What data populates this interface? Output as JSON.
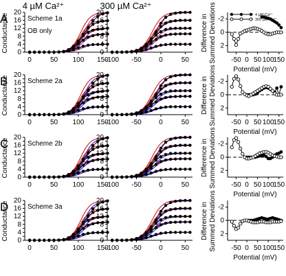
{
  "figure": {
    "column_headers": [
      "4 µM Ca²⁺",
      "300 µM Ca²⁺"
    ],
    "ca_low": "4 µM Ca",
    "ca_high": "300 µM Ca",
    "ca_superscript": "2+",
    "micro_symbol": "μ",
    "left_ylabel": "Conductance",
    "right_ylabel_line1": "Difference in",
    "right_ylabel_line2": "Summed Deviations",
    "xlabel": "Potential (mV)",
    "legend": [
      "4 µM Ca²⁺",
      "300 µM Ca²⁺"
    ],
    "rows": [
      {
        "letter": "A",
        "scheme": "Scheme 1a",
        "note": "OB only"
      },
      {
        "letter": "B",
        "scheme": "Scheme 2a",
        "note": ""
      },
      {
        "letter": "C",
        "scheme": "Scheme 2b",
        "note": ""
      },
      {
        "letter": "D",
        "scheme": "Scheme 3a",
        "note": ""
      }
    ],
    "colors": {
      "data": "#000000",
      "fit_red": "#d01818",
      "fit_blue": "#2020d0",
      "fit_purple": "#8030a0"
    }
  },
  "chart_data": [
    {
      "type": "line",
      "panel": "left (4 µM Ca²⁺), rows A–D",
      "xlim": [
        -10,
        165
      ],
      "ylim": [
        0,
        20
      ],
      "x_ticks": [
        0,
        50,
        100,
        150
      ],
      "y_ticks": [
        0,
        2,
        4,
        6,
        8,
        10,
        12,
        14,
        16,
        18,
        20
      ],
      "x": [
        0,
        10,
        20,
        30,
        40,
        50,
        60,
        70,
        80,
        90,
        100,
        110,
        120,
        130,
        140,
        150,
        160
      ],
      "series": [
        {
          "values": [
            0,
            0,
            0,
            0,
            0,
            0,
            0.1,
            0.3,
            1.0,
            2.4,
            4.8,
            8.5,
            12.5,
            15.8,
            18.0,
            19.2,
            19.8
          ]
        },
        {
          "values": [
            0,
            0,
            0,
            0,
            0,
            0,
            0.1,
            0.3,
            1.2,
            2.9,
            5.6,
            9.0,
            12.0,
            14.0,
            15.0,
            15.6,
            15.8
          ]
        },
        {
          "values": [
            0,
            0,
            0,
            0,
            0,
            0,
            0.1,
            0.4,
            1.3,
            3.0,
            5.6,
            8.2,
            10.0,
            11.0,
            11.5,
            11.8,
            12.0
          ]
        },
        {
          "values": [
            0,
            0,
            0,
            0,
            0,
            0,
            0.1,
            0.3,
            1.0,
            2.3,
            4.1,
            6.0,
            7.5,
            8.3,
            8.8,
            9.0,
            9.1
          ]
        },
        {
          "values": [
            0,
            0,
            0,
            0,
            0,
            0,
            0.1,
            0.2,
            0.6,
            1.3,
            2.2,
            3.0,
            3.5,
            3.8,
            3.9,
            4.0,
            4.0
          ]
        }
      ]
    },
    {
      "type": "line",
      "panel": "middle (300 µM Ca²⁺), rows A–D",
      "xlim": [
        -110,
        65
      ],
      "ylim": [
        0,
        20
      ],
      "x_ticks": [
        -100,
        -50,
        0,
        50
      ],
      "y_ticks": [
        0,
        2,
        4,
        6,
        8,
        10,
        12,
        14,
        16,
        18,
        20
      ],
      "x": [
        -100,
        -90,
        -80,
        -70,
        -60,
        -50,
        -40,
        -30,
        -20,
        -10,
        0,
        10,
        20,
        30,
        40,
        50,
        60
      ],
      "series": [
        {
          "values": [
            0,
            0,
            0,
            0.1,
            0.3,
            0.8,
            1.8,
            3.5,
            6.5,
            10.5,
            14.5,
            17.5,
            19.0,
            19.6,
            19.9,
            20.0,
            20.0
          ]
        },
        {
          "values": [
            0,
            0,
            0,
            0.1,
            0.3,
            0.9,
            2.0,
            3.9,
            6.8,
            10.0,
            12.8,
            14.6,
            15.4,
            15.8,
            16.0,
            16.0,
            16.0
          ]
        },
        {
          "values": [
            0,
            0,
            0,
            0.1,
            0.3,
            0.9,
            2.0,
            3.8,
            6.0,
            8.5,
            10.3,
            11.4,
            11.9,
            12.0,
            12.0,
            12.0,
            12.0
          ]
        },
        {
          "values": [
            0,
            0,
            0,
            0.1,
            0.2,
            0.7,
            1.5,
            2.9,
            4.6,
            6.4,
            7.8,
            8.6,
            9.0,
            9.1,
            9.2,
            9.2,
            9.2
          ]
        },
        {
          "values": [
            0,
            0,
            0,
            0,
            0.1,
            0.3,
            0.7,
            1.3,
            2.1,
            2.9,
            3.5,
            3.8,
            4.0,
            4.0,
            4.0,
            4.0,
            4.0
          ]
        }
      ]
    },
    {
      "type": "line",
      "panel": "right (Difference in Summed Deviations), row A",
      "xlim": [
        -90,
        170
      ],
      "ylim": [
        3,
        -3
      ],
      "x_ticks": [
        -50,
        0,
        50,
        100,
        150
      ],
      "y_ticks": [
        -2,
        0,
        2
      ],
      "series": [
        {
          "name": "4 µM Ca²⁺",
          "x": [
            70,
            80,
            90,
            100,
            110,
            120,
            130,
            140,
            150,
            160
          ],
          "values": [
            -2.3,
            -2.3,
            -2.2,
            -2.1,
            -2.0,
            -1.8,
            -1.6,
            -1.4,
            -1.1,
            -0.7
          ]
        },
        {
          "name": "300 µM Ca²⁺",
          "x": [
            -70,
            -60,
            -50,
            -40,
            -30,
            -20,
            -10,
            0,
            10,
            20,
            30,
            40,
            50,
            60,
            70,
            80,
            90,
            100,
            110,
            120,
            130,
            140,
            150,
            160
          ],
          "values": [
            0.3,
            1.0,
            1.9,
            1.0,
            0.2,
            0.0,
            -0.2,
            -0.3,
            -0.4,
            -0.5,
            -0.6,
            -0.6,
            -0.5,
            -0.4,
            -0.2,
            0.0,
            0.2,
            0.3,
            0.3,
            0.2,
            0.1,
            0.0,
            0.0,
            0.0
          ]
        }
      ]
    },
    {
      "type": "line",
      "panel": "right, row B",
      "xlim": [
        -90,
        170
      ],
      "ylim": [
        3,
        -3
      ],
      "x_ticks": [
        -50,
        0,
        50,
        100,
        150
      ],
      "y_ticks": [
        -2,
        0,
        2
      ],
      "series": [
        {
          "name": "4 µM Ca²⁺",
          "x": [
            0,
            10,
            20,
            30,
            40,
            50,
            60,
            70,
            80,
            90,
            100,
            110,
            120,
            130,
            140,
            150,
            160
          ],
          "values": [
            0,
            0,
            0,
            0,
            -0.1,
            -0.3,
            -0.6,
            -0.8,
            -1.0,
            -1.1,
            -1.0,
            -0.8,
            -0.6,
            -0.4,
            -1.0,
            0.0,
            -1.2
          ]
        },
        {
          "name": "300 µM Ca²⁺",
          "x": [
            -70,
            -60,
            -50,
            -40,
            -30,
            -20,
            -10,
            0,
            10,
            20,
            30,
            40,
            50,
            60,
            70,
            80,
            90,
            100,
            110,
            120,
            130,
            140,
            150,
            160
          ],
          "values": [
            -1.2,
            -2.4,
            -2.8,
            -2.3,
            -1.3,
            -0.4,
            -0.1,
            0.1,
            0.2,
            0.0,
            -0.2,
            -0.4,
            -0.6,
            -0.8,
            -1.0,
            -1.2,
            -1.3,
            -1.2,
            -0.9,
            -0.6,
            -0.2,
            0.0,
            0.0,
            0.0
          ]
        }
      ]
    },
    {
      "type": "line",
      "panel": "right, row C",
      "xlim": [
        -90,
        170
      ],
      "ylim": [
        3,
        -3
      ],
      "x_ticks": [
        -50,
        0,
        50,
        100,
        150
      ],
      "y_ticks": [
        -2,
        0,
        2
      ],
      "series": [
        {
          "name": "4 µM Ca²⁺",
          "x": [
            0,
            10,
            20,
            30,
            40,
            50,
            60,
            70,
            80,
            90,
            100,
            110,
            120,
            130,
            140,
            150,
            160
          ],
          "values": [
            0,
            0,
            0,
            0,
            0,
            -0.1,
            -0.2,
            -0.2,
            -0.3,
            -0.1,
            0.2,
            0.2,
            0.0,
            -0.3,
            -0.5,
            -0.6,
            -0.8
          ]
        },
        {
          "name": "300 µM Ca²⁺",
          "x": [
            -70,
            -60,
            -50,
            -40,
            -30,
            -20,
            -10,
            0,
            10,
            20,
            30,
            40,
            50,
            60,
            70,
            80,
            90,
            100,
            110,
            120,
            130,
            140,
            150,
            160
          ],
          "values": [
            -1.5,
            -2.6,
            -2.9,
            -2.3,
            -1.3,
            -0.5,
            0.0,
            0.2,
            0.2,
            0.1,
            0.0,
            -0.2,
            -0.4,
            -0.6,
            -0.7,
            -0.8,
            -0.8,
            -0.7,
            -0.5,
            -0.3,
            -0.2,
            -0.1,
            0.0,
            0.0
          ]
        }
      ]
    },
    {
      "type": "line",
      "panel": "right, row D",
      "xlim": [
        -90,
        170
      ],
      "ylim": [
        3,
        -3
      ],
      "x_ticks": [
        -50,
        0,
        50,
        100,
        150
      ],
      "y_ticks": [
        -2,
        0,
        2
      ],
      "series": [
        {
          "name": "4 µM Ca²⁺",
          "x": [
            0,
            10,
            20,
            30,
            40,
            50,
            60,
            70,
            80,
            90,
            100,
            110,
            120,
            130,
            140,
            150,
            160
          ],
          "values": [
            0,
            0,
            0,
            0,
            -0.1,
            -0.2,
            -0.3,
            -0.4,
            -0.3,
            -0.2,
            -0.2,
            -0.3,
            -0.4,
            -0.3,
            -0.2,
            -0.1,
            0.0
          ]
        },
        {
          "name": "300 µM Ca²⁺",
          "x": [
            -70,
            -60,
            -50,
            -40,
            -30,
            -20,
            -10,
            0,
            10,
            20,
            30,
            40,
            50,
            60,
            70,
            80,
            90,
            100,
            110,
            120,
            130,
            140,
            150,
            160
          ],
          "values": [
            0.2,
            0.8,
            1.3,
            1.1,
            0.5,
            0.1,
            0.0,
            0.0,
            0.1,
            0.2,
            0.3,
            0.3,
            0.3,
            0.2,
            0.2,
            0.2,
            0.3,
            0.3,
            0.3,
            0.2,
            0.2,
            0.2,
            0.2,
            0.1
          ]
        }
      ]
    }
  ]
}
